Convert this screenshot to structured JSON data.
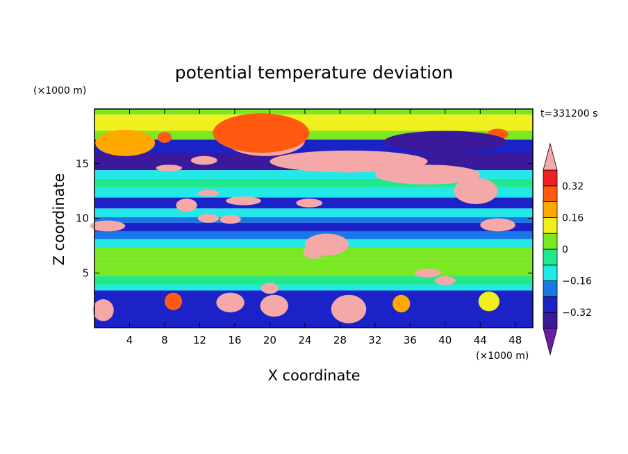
{
  "chart_data": {
    "type": "heatmap",
    "title": "potential temperature deviation",
    "xlabel": "X coordinate",
    "ylabel": "Z coordinate",
    "x_unit": "(×1000 m)",
    "y_unit": "(×1000 m)",
    "time_label": "t=331200 s",
    "xlim": [
      0,
      50
    ],
    "ylim": [
      0,
      20
    ],
    "x_ticks": [
      4,
      8,
      12,
      16,
      20,
      24,
      28,
      32,
      36,
      40,
      44,
      48
    ],
    "y_ticks": [
      5,
      10,
      15
    ],
    "colorbar": {
      "levels": [
        -0.4,
        -0.32,
        -0.24,
        -0.16,
        -0.08,
        0,
        0.08,
        0.16,
        0.24,
        0.32,
        0.4
      ],
      "labels": [
        "0.32",
        "0.16",
        "0",
        "−0.16",
        "−0.32"
      ],
      "label_values": [
        0.32,
        0.16,
        0,
        -0.16,
        -0.32
      ],
      "colors": [
        "#6a1ea6",
        "#3a1a9a",
        "#1a22c8",
        "#1a78e6",
        "#22e8e8",
        "#22e890",
        "#7ae822",
        "#f0f020",
        "#ffa800",
        "#ff5a10",
        "#f02020",
        "#f5a8a8"
      ],
      "extend": "both"
    },
    "horizontal_bands": [
      {
        "z": [
          19.5,
          20.0
        ],
        "value": 0.05
      },
      {
        "z": [
          18.0,
          19.5
        ],
        "value": 0.08
      },
      {
        "z": [
          17.2,
          18.0
        ],
        "value": 0.0
      },
      {
        "z": [
          16.0,
          17.2
        ],
        "value": -0.3
      },
      {
        "z": [
          14.4,
          16.0
        ],
        "value": -0.38
      },
      {
        "z": [
          13.6,
          14.4
        ],
        "value": -0.12
      },
      {
        "z": [
          12.8,
          13.6
        ],
        "value": -0.06
      },
      {
        "z": [
          11.9,
          12.8
        ],
        "value": -0.14
      },
      {
        "z": [
          10.9,
          11.9
        ],
        "value": -0.26
      },
      {
        "z": [
          10.1,
          10.9
        ],
        "value": -0.12
      },
      {
        "z": [
          9.6,
          10.1
        ],
        "value": -0.2
      },
      {
        "z": [
          8.8,
          9.6
        ],
        "value": -0.3
      },
      {
        "z": [
          8.1,
          8.8
        ],
        "value": -0.2
      },
      {
        "z": [
          7.3,
          8.1
        ],
        "value": -0.1
      },
      {
        "z": [
          6.3,
          7.3
        ],
        "value": 0.0
      },
      {
        "z": [
          4.7,
          6.3
        ],
        "value": 0.04
      },
      {
        "z": [
          3.9,
          4.7
        ],
        "value": -0.06
      },
      {
        "z": [
          3.4,
          3.9
        ],
        "value": -0.12
      },
      {
        "z": [
          0.0,
          3.4
        ],
        "value": -0.3
      }
    ],
    "anomalies": [
      {
        "x": 3.5,
        "z": 16.4,
        "rx": 2.6,
        "rz": 0.7,
        "value": 0.45
      },
      {
        "x": 3.5,
        "z": 16.9,
        "rx": 3.4,
        "rz": 1.2,
        "value": 0.2
      },
      {
        "x": 19.5,
        "z": 17.1,
        "rx": 4.5,
        "rz": 1.4,
        "value": 0.45
      },
      {
        "x": 19.0,
        "z": 17.8,
        "rx": 5.5,
        "rz": 1.8,
        "value": 0.24
      },
      {
        "x": 8.0,
        "z": 17.4,
        "rx": 0.8,
        "rz": 0.5,
        "value": 0.24
      },
      {
        "x": 46.0,
        "z": 17.7,
        "rx": 1.2,
        "rz": 0.5,
        "value": 0.24
      },
      {
        "x": 40.0,
        "z": 17.0,
        "rx": 7.0,
        "rz": 1.0,
        "value": -0.38
      },
      {
        "x": 29.0,
        "z": 15.2,
        "rx": 9.0,
        "rz": 1.0,
        "value": 0.45
      },
      {
        "x": 38.0,
        "z": 14.0,
        "rx": 6.0,
        "rz": 0.9,
        "value": 0.45
      },
      {
        "x": 43.5,
        "z": 12.5,
        "rx": 2.5,
        "rz": 1.2,
        "value": 0.45
      },
      {
        "x": 12.5,
        "z": 15.3,
        "rx": 1.5,
        "rz": 0.4,
        "value": 0.45
      },
      {
        "x": 8.5,
        "z": 14.6,
        "rx": 1.5,
        "rz": 0.3,
        "value": 0.45
      },
      {
        "x": 13.0,
        "z": 12.3,
        "rx": 1.2,
        "rz": 0.3,
        "value": 0.45
      },
      {
        "x": 17.0,
        "z": 11.6,
        "rx": 2.0,
        "rz": 0.4,
        "value": 0.45
      },
      {
        "x": 10.5,
        "z": 11.2,
        "rx": 1.2,
        "rz": 0.6,
        "value": 0.45
      },
      {
        "x": 24.5,
        "z": 11.4,
        "rx": 1.5,
        "rz": 0.4,
        "value": 0.45
      },
      {
        "x": 13.0,
        "z": 10.0,
        "rx": 1.2,
        "rz": 0.4,
        "value": 0.45
      },
      {
        "x": 15.5,
        "z": 9.9,
        "rx": 1.2,
        "rz": 0.4,
        "value": 0.45
      },
      {
        "x": 46.0,
        "z": 9.4,
        "rx": 2.0,
        "rz": 0.6,
        "value": 0.45
      },
      {
        "x": 1.5,
        "z": 9.3,
        "rx": 2.0,
        "rz": 0.5,
        "value": 0.45
      },
      {
        "x": 26.5,
        "z": 7.6,
        "rx": 2.5,
        "rz": 1.0,
        "value": 0.45
      },
      {
        "x": 25.0,
        "z": 6.9,
        "rx": 1.2,
        "rz": 0.6,
        "value": 0.45
      },
      {
        "x": 38.0,
        "z": 5.0,
        "rx": 1.5,
        "rz": 0.4,
        "value": 0.45
      },
      {
        "x": 40.0,
        "z": 4.3,
        "rx": 1.2,
        "rz": 0.4,
        "value": 0.45
      },
      {
        "x": 20.0,
        "z": 3.6,
        "rx": 1.0,
        "rz": 0.5,
        "value": 0.45
      },
      {
        "x": 15.5,
        "z": 2.3,
        "rx": 1.6,
        "rz": 0.9,
        "value": 0.45
      },
      {
        "x": 20.5,
        "z": 2.0,
        "rx": 1.6,
        "rz": 1.0,
        "value": 0.45
      },
      {
        "x": 29.0,
        "z": 1.7,
        "rx": 2.0,
        "rz": 1.3,
        "value": 0.45
      },
      {
        "x": 1.0,
        "z": 1.6,
        "rx": 1.2,
        "rz": 1.0,
        "value": 0.45
      },
      {
        "x": 9.0,
        "z": 2.4,
        "rx": 1.0,
        "rz": 0.8,
        "value": 0.24
      },
      {
        "x": 35.0,
        "z": 2.2,
        "rx": 1.0,
        "rz": 0.8,
        "value": 0.16
      },
      {
        "x": 45.0,
        "z": 2.4,
        "rx": 1.2,
        "rz": 0.9,
        "value": 0.08
      }
    ]
  }
}
